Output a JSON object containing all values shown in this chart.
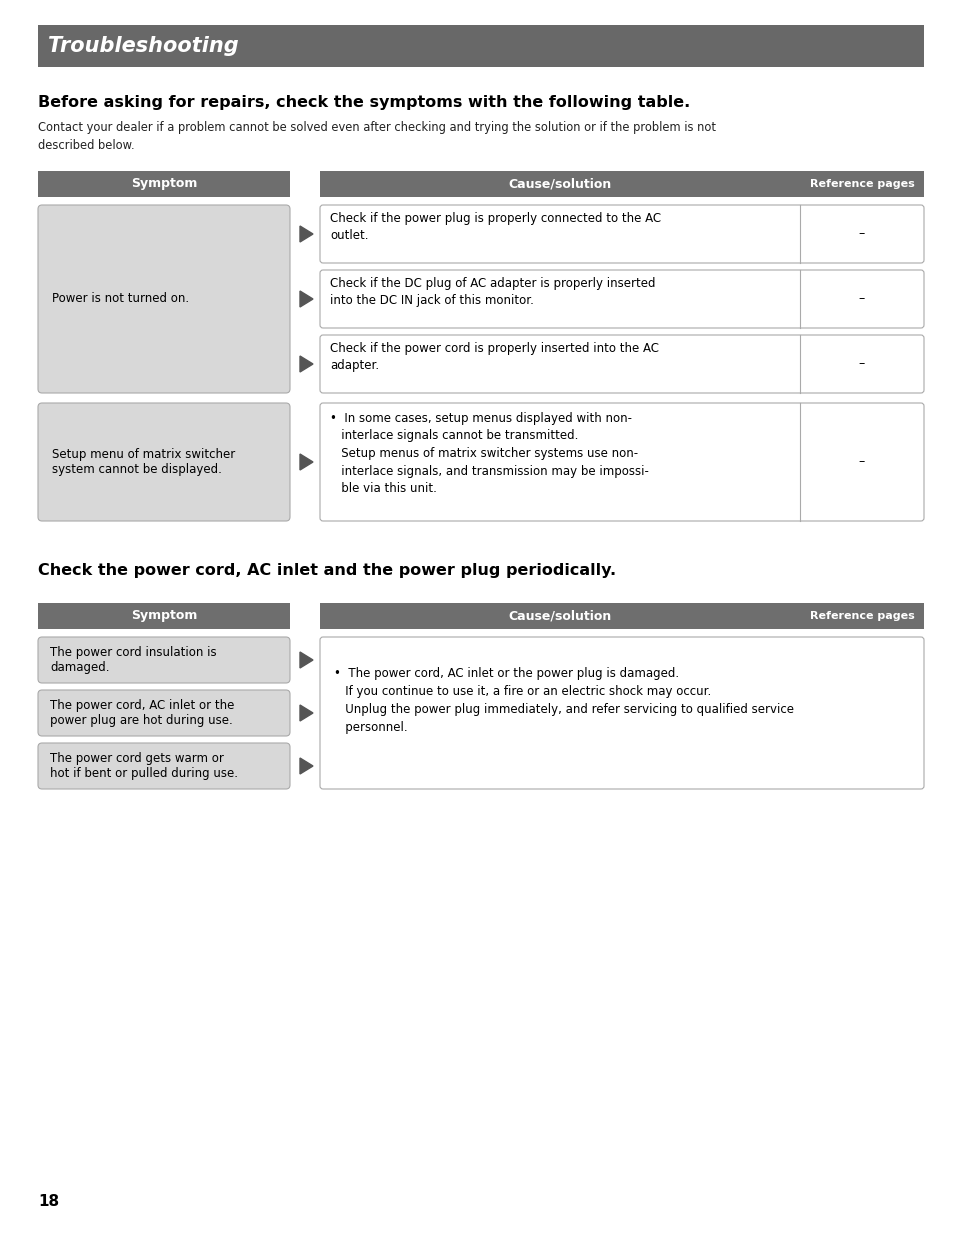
{
  "bg_color": "#ffffff",
  "title_bar_color": "#686868",
  "title_bar_text": "Troubleshooting",
  "title_bar_text_color": "#ffffff",
  "section1_heading": "Before asking for repairs, check the symptoms with the following table.",
  "section1_body": "Contact your dealer if a problem cannot be solved even after checking and trying the solution or if the problem is not\ndescribed below.",
  "section2_heading": "Check the power cord, AC inlet and the power plug periodically.",
  "header_bg": "#6e6e6e",
  "header_text_color": "#ffffff",
  "header_symptom": "Symptom",
  "header_cause": "Cause/solution",
  "header_ref": "Reference pages",
  "symptom_box_color": "#d8d8d8",
  "cause_box_color": "#ffffff",
  "cause_box_border": "#aaaaaa",
  "arrow_color": "#555555",
  "page_number": "18",
  "table1": {
    "symptom1": "Power is not turned on.",
    "causes1": [
      "Check if the power plug is properly connected to the AC\noutlet.",
      "Check if the DC plug of AC adapter is properly inserted\ninto the DC IN jack of this monitor.",
      "Check if the power cord is properly inserted into the AC\nadapter."
    ],
    "refs1": [
      "–",
      "–",
      "–"
    ],
    "symptom2": "Setup menu of matrix switcher\nsystem cannot be displayed.",
    "cause2": "•  In some cases, setup menus displayed with non-\n   interlace signals cannot be transmitted.\n   Setup menus of matrix switcher systems use non-\n   interlace signals, and transmission may be impossi-\n   ble via this unit.",
    "ref2": "–"
  },
  "table2": {
    "symptoms": [
      "The power cord insulation is\ndamaged.",
      "The power cord, AC inlet or the\npower plug are hot during use.",
      "The power cord gets warm or\nhot if bent or pulled during use."
    ],
    "cause": "•  The power cord, AC inlet or the power plug is damaged.\n   If you continue to use it, a fire or an electric shock may occur.\n   Unplug the power plug immediately, and refer servicing to qualified service\n   personnel."
  }
}
